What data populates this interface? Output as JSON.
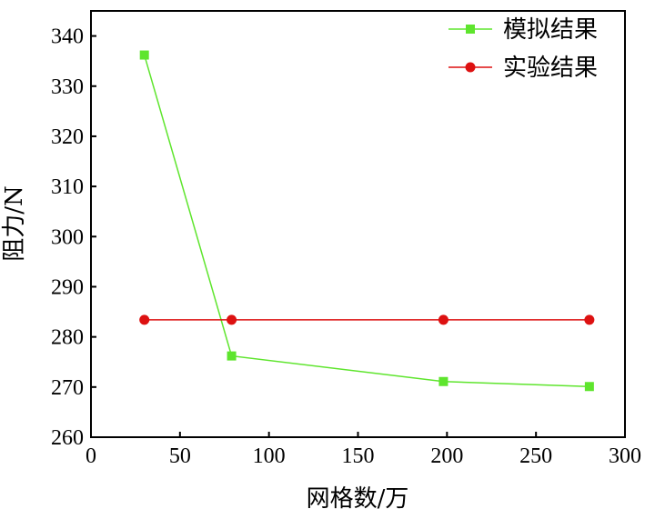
{
  "chart_data": {
    "type": "line",
    "title": "",
    "xlabel": "网格数/万",
    "ylabel": "阻力/N",
    "xlim": [
      0,
      300
    ],
    "ylim": [
      260,
      345
    ],
    "xticks": [
      0,
      50,
      100,
      150,
      200,
      250,
      300
    ],
    "yticks": [
      260,
      270,
      280,
      290,
      300,
      310,
      320,
      330,
      340
    ],
    "grid": false,
    "legend_position": "top-right",
    "series": [
      {
        "name": "模拟结果",
        "color": "#5ee52d",
        "marker": "square",
        "x": [
          30,
          79,
          198,
          280
        ],
        "y": [
          336.2,
          276.2,
          271.1,
          270.1
        ]
      },
      {
        "name": "实验结果",
        "color": "#dd1111",
        "marker": "circle",
        "x": [
          30,
          79,
          198,
          280
        ],
        "y": [
          283.4,
          283.4,
          283.4,
          283.4
        ]
      }
    ]
  }
}
